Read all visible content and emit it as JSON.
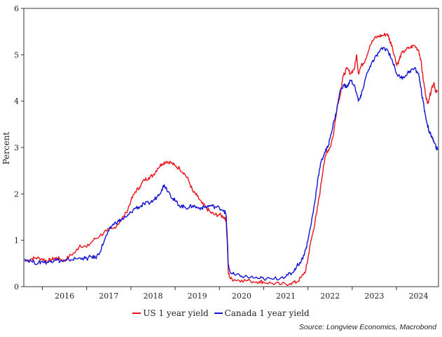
{
  "chart_data": {
    "type": "line",
    "ylabel": "Percent",
    "yticks": [
      0,
      1,
      2,
      3,
      4,
      5,
      6
    ],
    "ylim": [
      0,
      6
    ],
    "xlim": [
      2015.58,
      2024.95
    ],
    "xtick_years": [
      "2016",
      "2017",
      "2018",
      "2019",
      "2020",
      "2021",
      "2022",
      "2023",
      "2024"
    ],
    "series": [
      {
        "name": "US 1 year yield",
        "color": "#e8141c",
        "points": [
          [
            2015.6,
            0.55
          ],
          [
            2015.75,
            0.6
          ],
          [
            2015.85,
            0.62
          ],
          [
            2016.0,
            0.6
          ],
          [
            2016.1,
            0.55
          ],
          [
            2016.2,
            0.58
          ],
          [
            2016.3,
            0.62
          ],
          [
            2016.4,
            0.6
          ],
          [
            2016.5,
            0.55
          ],
          [
            2016.6,
            0.65
          ],
          [
            2016.75,
            0.75
          ],
          [
            2016.85,
            0.9
          ],
          [
            2017.0,
            0.85
          ],
          [
            2017.15,
            1.0
          ],
          [
            2017.3,
            1.1
          ],
          [
            2017.45,
            1.2
          ],
          [
            2017.6,
            1.25
          ],
          [
            2017.75,
            1.4
          ],
          [
            2017.9,
            1.6
          ],
          [
            2018.0,
            1.85
          ],
          [
            2018.1,
            2.05
          ],
          [
            2018.2,
            2.15
          ],
          [
            2018.3,
            2.3
          ],
          [
            2018.4,
            2.35
          ],
          [
            2018.5,
            2.4
          ],
          [
            2018.6,
            2.55
          ],
          [
            2018.7,
            2.65
          ],
          [
            2018.8,
            2.7
          ],
          [
            2018.9,
            2.68
          ],
          [
            2019.0,
            2.6
          ],
          [
            2019.1,
            2.55
          ],
          [
            2019.2,
            2.45
          ],
          [
            2019.3,
            2.3
          ],
          [
            2019.4,
            2.05
          ],
          [
            2019.5,
            1.95
          ],
          [
            2019.6,
            1.8
          ],
          [
            2019.7,
            1.7
          ],
          [
            2019.8,
            1.6
          ],
          [
            2019.9,
            1.55
          ],
          [
            2020.0,
            1.55
          ],
          [
            2020.1,
            1.5
          ],
          [
            2020.15,
            1.45
          ],
          [
            2020.18,
            0.9
          ],
          [
            2020.2,
            0.3
          ],
          [
            2020.25,
            0.17
          ],
          [
            2020.35,
            0.15
          ],
          [
            2020.5,
            0.14
          ],
          [
            2020.7,
            0.12
          ],
          [
            2020.9,
            0.11
          ],
          [
            2021.0,
            0.1
          ],
          [
            2021.2,
            0.07
          ],
          [
            2021.4,
            0.05
          ],
          [
            2021.6,
            0.07
          ],
          [
            2021.75,
            0.1
          ],
          [
            2021.85,
            0.2
          ],
          [
            2021.95,
            0.35
          ],
          [
            2022.0,
            0.6
          ],
          [
            2022.05,
            0.9
          ],
          [
            2022.12,
            1.2
          ],
          [
            2022.2,
            1.6
          ],
          [
            2022.28,
            2.1
          ],
          [
            2022.35,
            2.6
          ],
          [
            2022.42,
            2.9
          ],
          [
            2022.5,
            3.0
          ],
          [
            2022.58,
            3.3
          ],
          [
            2022.66,
            3.9
          ],
          [
            2022.72,
            4.1
          ],
          [
            2022.8,
            4.55
          ],
          [
            2022.88,
            4.7
          ],
          [
            2022.96,
            4.6
          ],
          [
            2023.05,
            4.7
          ],
          [
            2023.1,
            5.0
          ],
          [
            2023.14,
            4.6
          ],
          [
            2023.2,
            4.75
          ],
          [
            2023.3,
            4.9
          ],
          [
            2023.4,
            5.2
          ],
          [
            2023.5,
            5.35
          ],
          [
            2023.6,
            5.4
          ],
          [
            2023.7,
            5.42
          ],
          [
            2023.8,
            5.45
          ],
          [
            2023.85,
            5.3
          ],
          [
            2023.9,
            5.2
          ],
          [
            2024.0,
            4.8
          ],
          [
            2024.05,
            4.85
          ],
          [
            2024.1,
            5.0
          ],
          [
            2024.2,
            5.1
          ],
          [
            2024.3,
            5.15
          ],
          [
            2024.4,
            5.2
          ],
          [
            2024.5,
            5.1
          ],
          [
            2024.55,
            4.9
          ],
          [
            2024.6,
            4.5
          ],
          [
            2024.65,
            4.2
          ],
          [
            2024.7,
            3.95
          ],
          [
            2024.75,
            4.1
          ],
          [
            2024.8,
            4.3
          ],
          [
            2024.85,
            4.4
          ],
          [
            2024.88,
            4.2
          ],
          [
            2024.93,
            4.2
          ]
        ]
      },
      {
        "name": "Canada 1 year yield",
        "color": "#1414d2",
        "points": [
          [
            2015.6,
            0.6
          ],
          [
            2015.75,
            0.55
          ],
          [
            2015.9,
            0.5
          ],
          [
            2016.0,
            0.55
          ],
          [
            2016.1,
            0.52
          ],
          [
            2016.2,
            0.55
          ],
          [
            2016.3,
            0.6
          ],
          [
            2016.4,
            0.55
          ],
          [
            2016.5,
            0.55
          ],
          [
            2016.6,
            0.58
          ],
          [
            2016.75,
            0.6
          ],
          [
            2016.9,
            0.62
          ],
          [
            2017.0,
            0.6
          ],
          [
            2017.1,
            0.65
          ],
          [
            2017.2,
            0.62
          ],
          [
            2017.3,
            0.75
          ],
          [
            2017.4,
            1.0
          ],
          [
            2017.5,
            1.2
          ],
          [
            2017.6,
            1.35
          ],
          [
            2017.7,
            1.4
          ],
          [
            2017.8,
            1.45
          ],
          [
            2017.9,
            1.5
          ],
          [
            2018.0,
            1.6
          ],
          [
            2018.1,
            1.7
          ],
          [
            2018.2,
            1.72
          ],
          [
            2018.3,
            1.78
          ],
          [
            2018.4,
            1.8
          ],
          [
            2018.5,
            1.85
          ],
          [
            2018.6,
            1.95
          ],
          [
            2018.7,
            2.1
          ],
          [
            2018.75,
            2.2
          ],
          [
            2018.85,
            2.05
          ],
          [
            2018.95,
            1.9
          ],
          [
            2019.0,
            1.85
          ],
          [
            2019.1,
            1.75
          ],
          [
            2019.2,
            1.72
          ],
          [
            2019.3,
            1.7
          ],
          [
            2019.4,
            1.75
          ],
          [
            2019.5,
            1.7
          ],
          [
            2019.6,
            1.7
          ],
          [
            2019.7,
            1.72
          ],
          [
            2019.8,
            1.75
          ],
          [
            2019.9,
            1.72
          ],
          [
            2020.0,
            1.7
          ],
          [
            2020.1,
            1.65
          ],
          [
            2020.15,
            1.55
          ],
          [
            2020.18,
            1.0
          ],
          [
            2020.2,
            0.45
          ],
          [
            2020.25,
            0.3
          ],
          [
            2020.35,
            0.25
          ],
          [
            2020.5,
            0.23
          ],
          [
            2020.7,
            0.2
          ],
          [
            2020.9,
            0.18
          ],
          [
            2021.0,
            0.17
          ],
          [
            2021.2,
            0.16
          ],
          [
            2021.4,
            0.2
          ],
          [
            2021.55,
            0.25
          ],
          [
            2021.65,
            0.3
          ],
          [
            2021.75,
            0.45
          ],
          [
            2021.85,
            0.55
          ],
          [
            2021.95,
            0.8
          ],
          [
            2022.0,
            1.0
          ],
          [
            2022.08,
            1.4
          ],
          [
            2022.15,
            1.8
          ],
          [
            2022.22,
            2.3
          ],
          [
            2022.3,
            2.7
          ],
          [
            2022.38,
            2.9
          ],
          [
            2022.45,
            3.0
          ],
          [
            2022.52,
            3.3
          ],
          [
            2022.6,
            3.6
          ],
          [
            2022.66,
            3.85
          ],
          [
            2022.72,
            4.2
          ],
          [
            2022.8,
            4.35
          ],
          [
            2022.88,
            4.3
          ],
          [
            2022.96,
            4.45
          ],
          [
            2023.05,
            4.35
          ],
          [
            2023.14,
            4.0
          ],
          [
            2023.2,
            4.1
          ],
          [
            2023.3,
            4.5
          ],
          [
            2023.4,
            4.75
          ],
          [
            2023.5,
            4.9
          ],
          [
            2023.6,
            5.05
          ],
          [
            2023.7,
            5.15
          ],
          [
            2023.8,
            5.1
          ],
          [
            2023.9,
            4.9
          ],
          [
            2024.0,
            4.6
          ],
          [
            2024.1,
            4.5
          ],
          [
            2024.2,
            4.55
          ],
          [
            2024.3,
            4.65
          ],
          [
            2024.4,
            4.7
          ],
          [
            2024.5,
            4.6
          ],
          [
            2024.55,
            4.3
          ],
          [
            2024.6,
            4.0
          ],
          [
            2024.65,
            3.7
          ],
          [
            2024.7,
            3.5
          ],
          [
            2024.75,
            3.3
          ],
          [
            2024.8,
            3.25
          ],
          [
            2024.85,
            3.1
          ],
          [
            2024.9,
            3.0
          ],
          [
            2024.93,
            2.95
          ]
        ]
      }
    ]
  },
  "legend": {
    "us_label": "US 1 year yield",
    "canada_label": "Canada 1 year yield"
  },
  "source_text": "Source: Longview Economics, Macrobond"
}
